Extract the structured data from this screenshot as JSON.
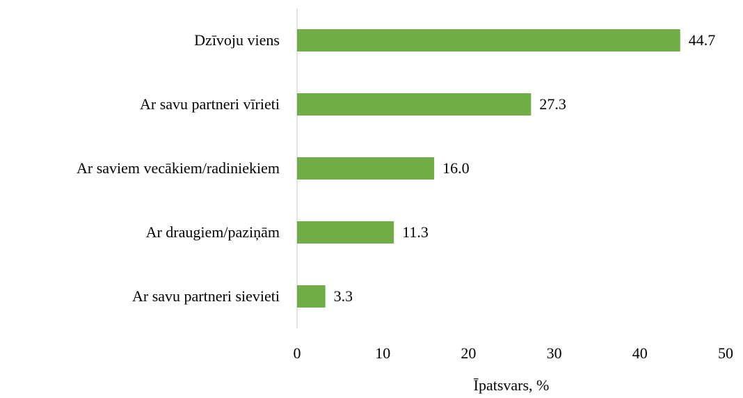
{
  "chart_data": {
    "type": "hbar",
    "categories": [
      "Dzīvoju viens",
      "Ar savu partneri vīrieti",
      "Ar saviem vecākiem/radiniekiem",
      "Ar draugiem/paziņām",
      "Ar savu partneri sievieti"
    ],
    "values": [
      44.7,
      27.3,
      16.0,
      11.3,
      3.3
    ],
    "value_labels": [
      "44.7",
      "27.3",
      "16.0",
      "11.3",
      "3.3"
    ],
    "color": "#70ad47",
    "xlim": [
      0,
      50
    ],
    "xticks": [
      0,
      10,
      20,
      30,
      40,
      50
    ],
    "x_label": "Īpatsvars, %"
  }
}
